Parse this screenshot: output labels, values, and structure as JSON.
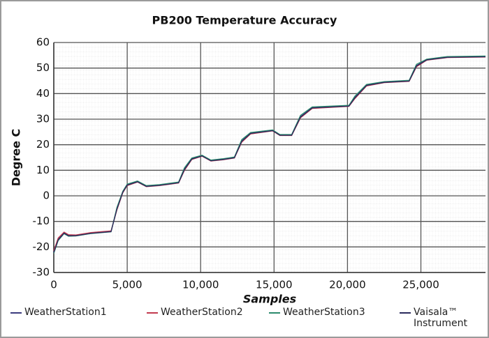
{
  "chart_data": {
    "type": "line",
    "title": "PB200 Temperature Accuracy",
    "x_label": "Samples",
    "y_label": "Degree C",
    "x": [
      0,
      300,
      700,
      1000,
      1500,
      2500,
      3900,
      4300,
      4700,
      5000,
      5700,
      6300,
      7200,
      8500,
      8900,
      9400,
      10100,
      10700,
      11500,
      12300,
      12800,
      13400,
      14900,
      15400,
      16200,
      16800,
      17600,
      20100,
      20500,
      21300,
      22500,
      24200,
      24700,
      25400,
      26800,
      29400
    ],
    "series": [
      {
        "name": "WeatherStation1",
        "color": "#3b3b7e",
        "values": [
          -22,
          -17,
          -14.5,
          -15.5,
          -15.5,
          -14.6,
          -13.9,
          -5,
          1.5,
          4.3,
          5.6,
          3.8,
          4.2,
          5.2,
          10.5,
          14.5,
          15.7,
          13.8,
          14.3,
          15,
          21.5,
          24.5,
          25.6,
          23.8,
          23.8,
          31,
          34.5,
          35.2,
          38.5,
          43.3,
          44.5,
          45,
          51,
          53.3,
          54.3,
          54.5
        ]
      },
      {
        "name": "WeatherStation2",
        "color": "#c23a4e",
        "values": [
          -21.5,
          -16.5,
          -14.2,
          -15.2,
          -15.3,
          -14.4,
          -13.7,
          -5.5,
          1.2,
          4.0,
          5.4,
          3.6,
          4.0,
          5.0,
          10.0,
          14.2,
          15.5,
          13.6,
          14.1,
          14.8,
          21.0,
          24.2,
          25.4,
          23.6,
          23.6,
          30.5,
          34.2,
          35.0,
          38.0,
          43.0,
          44.3,
          44.8,
          50.5,
          53.1,
          54.1,
          54.3
        ]
      },
      {
        "name": "WeatherStation3",
        "color": "#2b8a6c",
        "values": [
          -22.5,
          -17.5,
          -14.8,
          -15.8,
          -15.7,
          -14.8,
          -14.1,
          -4.5,
          1.8,
          4.6,
          5.8,
          4.0,
          4.4,
          5.4,
          11.0,
          14.8,
          15.9,
          14.0,
          14.5,
          15.2,
          22.0,
          24.8,
          25.8,
          24.0,
          24.0,
          31.5,
          34.8,
          35.4,
          39.0,
          43.6,
          44.7,
          45.2,
          51.5,
          53.5,
          54.5,
          54.7
        ]
      },
      {
        "name": "Vaisala™ Instrument",
        "color": "#2a2a5c",
        "values": [
          -22.2,
          -17.2,
          -14.6,
          -15.6,
          -15.6,
          -14.7,
          -14.0,
          -5.2,
          1.4,
          4.2,
          5.5,
          3.7,
          4.1,
          5.1,
          10.3,
          14.4,
          15.6,
          13.7,
          14.2,
          14.9,
          21.3,
          24.4,
          25.5,
          23.7,
          23.7,
          30.8,
          34.4,
          35.1,
          38.3,
          43.2,
          44.4,
          44.9,
          50.8,
          53.2,
          54.2,
          54.4
        ]
      }
    ],
    "xlim": [
      0,
      29400
    ],
    "xticks": [
      0,
      {
        "value": 5000,
        "label": "5,000"
      },
      {
        "value": 10000,
        "label": "10,000"
      },
      {
        "value": 15000,
        "label": "15,000"
      },
      {
        "value": 20000,
        "label": "20,000"
      },
      {
        "value": 25000,
        "label": "25,000"
      }
    ],
    "ylim": [
      -30,
      60
    ],
    "yticks": [
      -30,
      -20,
      -10,
      0,
      10,
      20,
      30,
      40,
      50,
      60
    ],
    "grid": true,
    "legend": "bottom"
  }
}
